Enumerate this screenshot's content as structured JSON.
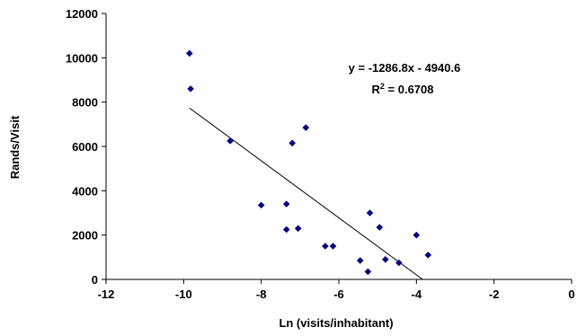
{
  "chart_data": {
    "type": "scatter",
    "xlabel": "Ln (visits/inhabitant)",
    "ylabel": "Rands/Visit",
    "xlim": [
      -12,
      0
    ],
    "ylim": [
      0,
      12000
    ],
    "xticks": [
      -12,
      -10,
      -8,
      -6,
      -4,
      -2,
      0
    ],
    "yticks": [
      0,
      2000,
      4000,
      6000,
      8000,
      10000,
      12000
    ],
    "grid": false,
    "marker_color": "#00007f",
    "series": [
      {
        "x": [
          -9.85,
          -9.82,
          -8.8,
          -8.0,
          -7.35,
          -7.35,
          -7.2,
          -7.05,
          -6.85,
          -6.35,
          -6.15,
          -5.45,
          -5.25,
          -5.2,
          -4.95,
          -4.8,
          -4.45,
          -4.0,
          -3.7
        ],
        "y": [
          10200,
          8600,
          6250,
          3350,
          3400,
          2250,
          6150,
          2300,
          6850,
          1500,
          1500,
          850,
          350,
          3000,
          2350,
          900,
          750,
          2000,
          1100
        ]
      }
    ],
    "trendline": {
      "slope": -1286.8,
      "intercept": -4940.6,
      "x_range": [
        -9.85,
        -3.84
      ]
    },
    "annotations": {
      "equation": "y = -1286.8x - 4940.6",
      "r2_label": "R",
      "r2_sup": "2",
      "r2_value": " = 0.6708"
    }
  }
}
